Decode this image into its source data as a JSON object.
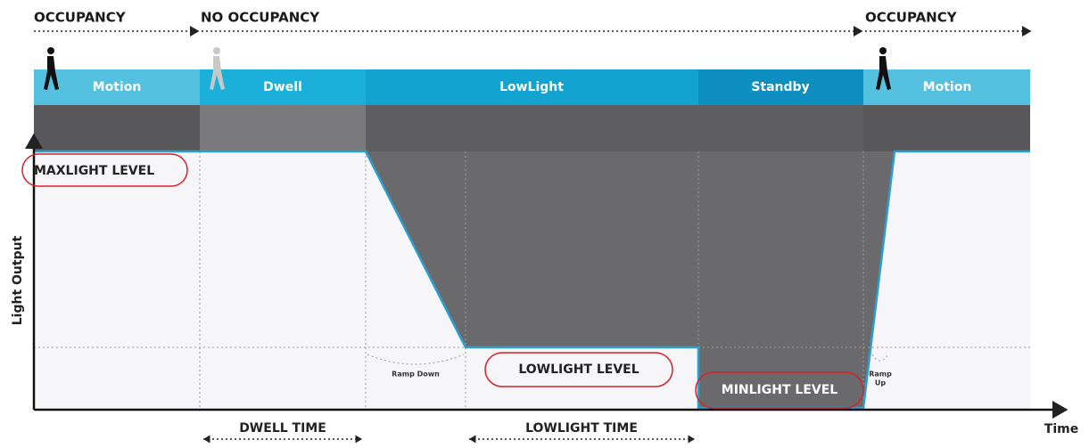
{
  "occupancy": [
    "OCCUPANCY",
    "NO OCCUPANCY",
    "OCCUPANCY"
  ],
  "states": [
    "Motion",
    "Dwell",
    "LowLight",
    "Standby",
    "Motion"
  ],
  "levels": {
    "max": "MAXLIGHT LEVEL",
    "low": "LOWLIGHT LEVEL",
    "min": "MINLIGHT LEVEL"
  },
  "ramps": {
    "down": "Ramp Down",
    "up": [
      "Ramp",
      "Up"
    ]
  },
  "axes": {
    "y": "Light Output",
    "x": "Time"
  },
  "durations": [
    "DWELL TIME",
    "LOWLIGHT TIME"
  ]
}
